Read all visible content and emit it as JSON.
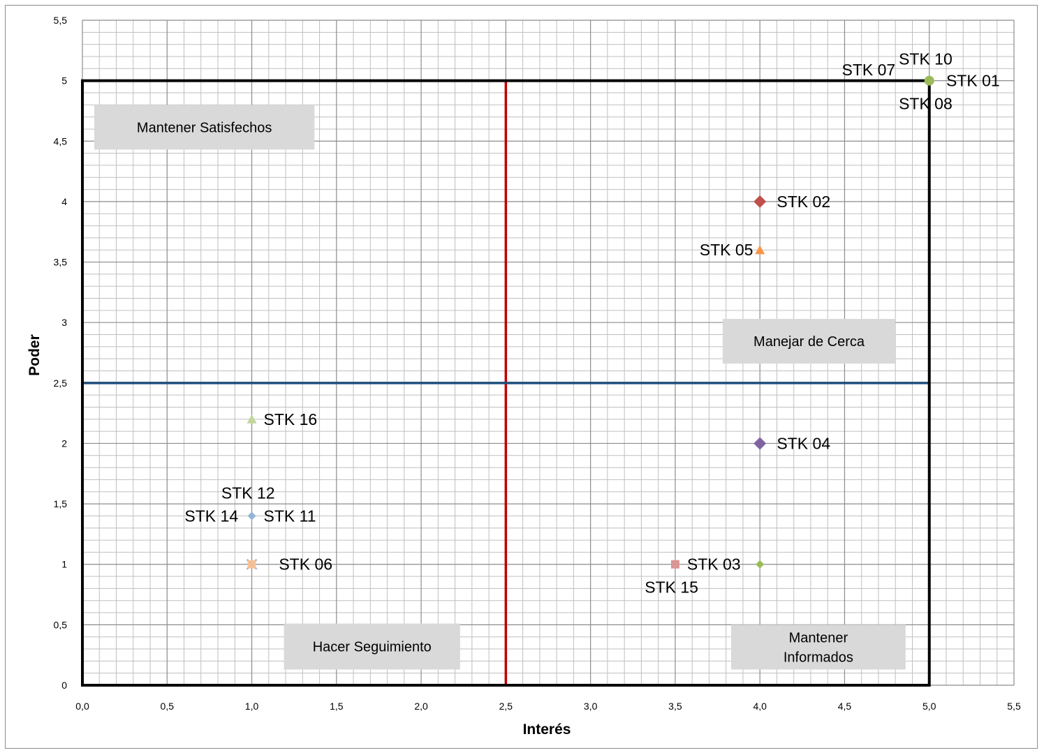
{
  "chart_data": {
    "type": "scatter",
    "xlabel": "Interés",
    "ylabel": "Poder",
    "xlim": [
      0,
      5.5
    ],
    "ylim": [
      0,
      5.5
    ],
    "x_ticks": [
      "0,0",
      "0,5",
      "1,0",
      "1,5",
      "2,0",
      "2,5",
      "3,0",
      "3,5",
      "4,0",
      "4,5",
      "5,0",
      "5,5"
    ],
    "y_ticks": [
      "0",
      "0,5",
      "1",
      "1,5",
      "2",
      "2,5",
      "3",
      "3,5",
      "4",
      "4,5",
      "5",
      "5,5"
    ],
    "grid": true,
    "minor_grid_step": 0.1,
    "box": {
      "x0": 0,
      "x1": 5,
      "y0": 0,
      "y1": 5,
      "color": "#000000"
    },
    "divider_vertical": {
      "x": 2.5,
      "color": "#c00000"
    },
    "divider_horizontal": {
      "y": 2.5,
      "color": "#1f4e79"
    },
    "quadrants": [
      {
        "lines": [
          "Mantener Satisfechos"
        ],
        "x0": 0.07,
        "x1": 1.37,
        "y0": 4.43,
        "y1": 4.8
      },
      {
        "lines": [
          "Manejar de Cerca"
        ],
        "x0": 3.78,
        "x1": 4.8,
        "y0": 2.66,
        "y1": 3.03
      },
      {
        "lines": [
          "Hacer Seguimiento"
        ],
        "x0": 1.19,
        "x1": 2.23,
        "y0": 0.13,
        "y1": 0.51
      },
      {
        "lines": [
          "Mantener",
          "Informados"
        ],
        "x0": 3.83,
        "x1": 4.86,
        "y0": 0.13,
        "y1": 0.5
      }
    ],
    "points": [
      {
        "name": "STK 01",
        "x": 5,
        "y": 5,
        "marker": "circle",
        "color": "#9bbb59",
        "lx": 5.1,
        "ly": 5,
        "anchor": "start"
      },
      {
        "name": "STK 07",
        "x": 5,
        "y": 5,
        "marker": "none",
        "color": "#4bacc6",
        "lx": 4.8,
        "ly": 5.09,
        "anchor": "end"
      },
      {
        "name": "STK 10",
        "x": 5,
        "y": 5,
        "marker": "none",
        "color": "#f79646",
        "lx": 4.82,
        "ly": 5.18,
        "anchor": "start"
      },
      {
        "name": "STK 08",
        "x": 5,
        "y": 5,
        "marker": "none",
        "color": "#8064a2",
        "lx": 4.82,
        "ly": 4.81,
        "anchor": "start"
      },
      {
        "name": "STK 02",
        "x": 4,
        "y": 4,
        "marker": "diamond",
        "color": "#c0504d",
        "lx": 4.1,
        "ly": 4,
        "anchor": "start"
      },
      {
        "name": "STK 05",
        "x": 4,
        "y": 3.6,
        "marker": "triangle",
        "color": "#f79646",
        "lx": 3.96,
        "ly": 3.6,
        "anchor": "end"
      },
      {
        "name": "STK 04",
        "x": 4,
        "y": 2,
        "marker": "diamond",
        "color": "#8064a2",
        "lx": 4.1,
        "ly": 2,
        "anchor": "start"
      },
      {
        "name": "STK 03",
        "x": 4,
        "y": 1,
        "marker": "diamond-small",
        "color": "#9bbb59",
        "lx": 3.57,
        "ly": 1,
        "anchor": "start"
      },
      {
        "name": "STK 15",
        "x": 3.5,
        "y": 1,
        "marker": "square",
        "color": "#d99694",
        "lx": 3.32,
        "ly": 0.81,
        "anchor": "start"
      },
      {
        "name": "STK 16",
        "x": 1,
        "y": 2.2,
        "marker": "triangle",
        "color": "#c3d69b",
        "lx": 1.07,
        "ly": 2.2,
        "anchor": "start"
      },
      {
        "name": "STK 11",
        "x": 1,
        "y": 1.4,
        "marker": "diamond-small",
        "color": "#95b3d7",
        "lx": 1.07,
        "ly": 1.4,
        "anchor": "start"
      },
      {
        "name": "STK 14",
        "x": 1,
        "y": 1.4,
        "marker": "none",
        "color": "#95b3d7",
        "lx": 0.92,
        "ly": 1.4,
        "anchor": "end"
      },
      {
        "name": "STK 12",
        "x": 1,
        "y": 1.4,
        "marker": "none",
        "color": "#95b3d7",
        "lx": 0.82,
        "ly": 1.59,
        "anchor": "start"
      },
      {
        "name": "STK 06",
        "x": 1,
        "y": 1,
        "marker": "square-x",
        "color": "#fac090",
        "lx": 1.16,
        "ly": 1,
        "anchor": "start"
      }
    ]
  }
}
